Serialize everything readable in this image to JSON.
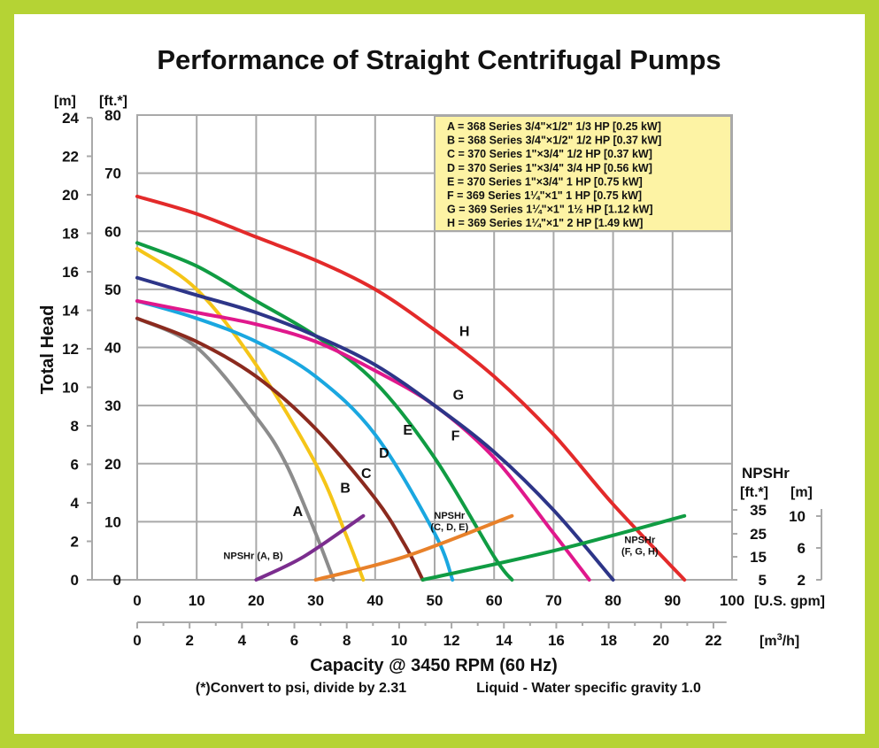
{
  "chart_data": {
    "type": "line",
    "title": "Performance of Straight Centrifugal Pumps",
    "xlabel": "Capacity @ 3450 RPM (60 Hz)",
    "ylabel": "Total Head",
    "x_unit_primary": "[U.S. gpm]",
    "x_unit_secondary": "[m3/h]",
    "y_unit_m": "[m]",
    "y_unit_ft": "[ft.*]",
    "xlim": [
      0,
      100
    ],
    "ylim": [
      0,
      80
    ],
    "grid": true,
    "x_ticks": [
      "0",
      "10",
      "20",
      "30",
      "40",
      "50",
      "60",
      "70",
      "80",
      "90",
      "100"
    ],
    "x2_ticks": [
      "0",
      "2",
      "4",
      "6",
      "8",
      "10",
      "12",
      "14",
      "16",
      "18",
      "20",
      "22"
    ],
    "y_ft_ticks": [
      "0",
      "10",
      "20",
      "30",
      "40",
      "50",
      "60",
      "70",
      "80"
    ],
    "y_m_ticks": [
      "0",
      "2",
      "4",
      "6",
      "8",
      "10",
      "12",
      "14",
      "16",
      "18",
      "20",
      "22",
      "24"
    ],
    "npsh_title": "NPSHr",
    "npsh_unit_ft": "[ft.*]",
    "npsh_unit_m": "[m]",
    "npsh_ft_ticks": [
      "5",
      "15",
      "25",
      "35"
    ],
    "npsh_m_ticks": [
      "2",
      "6",
      "10"
    ],
    "legend_position": "top-right",
    "legend": [
      "A = 368 Series 3/4\"×1/2\" 1/3 HP [0.25 kW]",
      "B = 368 Series 3/4\"×1/2\" 1/2 HP [0.37 kW]",
      "C = 370 Series 1\"×3/4\" 1/2 HP [0.37 kW]",
      "D = 370 Series 1\"×3/4\" 3/4 HP [0.56 kW]",
      "E = 370 Series 1\"×3/4\" 1 HP [0.75 kW]",
      "F = 369 Series 1¼\"×1\" 1 HP [0.75 kW]",
      "G = 369 Series 1¼\"×1\" 1½ HP [1.12 kW]",
      "H = 369 Series 1¼\"×1\" 2 HP [1.49 kW]"
    ],
    "series": [
      {
        "name": "A",
        "color": "#8c8c8c",
        "x": [
          0,
          10,
          20,
          25,
          30,
          33
        ],
        "y": [
          45,
          40,
          28,
          20,
          8,
          0
        ]
      },
      {
        "name": "B",
        "color": "#f5c518",
        "x": [
          0,
          10,
          20,
          30,
          35,
          38
        ],
        "y": [
          57,
          50,
          37,
          20,
          8,
          0
        ]
      },
      {
        "name": "C",
        "color": "#8b2a1e",
        "x": [
          0,
          10,
          20,
          30,
          40,
          45,
          48
        ],
        "y": [
          45,
          41,
          35,
          26,
          14,
          6,
          0
        ]
      },
      {
        "name": "D",
        "color": "#1aa7e0",
        "x": [
          0,
          10,
          20,
          30,
          40,
          50,
          53
        ],
        "y": [
          48,
          45,
          41,
          35,
          25,
          8,
          0
        ]
      },
      {
        "name": "E",
        "color": "#109c43",
        "x": [
          0,
          10,
          20,
          30,
          40,
          50,
          60,
          63
        ],
        "y": [
          58,
          54,
          48,
          42,
          34,
          21,
          4,
          0
        ]
      },
      {
        "name": "F",
        "color": "#e0188c",
        "x": [
          0,
          10,
          20,
          30,
          40,
          50,
          60,
          70,
          76
        ],
        "y": [
          48,
          46,
          44,
          41,
          36,
          30,
          21,
          8,
          0
        ]
      },
      {
        "name": "G",
        "color": "#2d3588",
        "x": [
          0,
          10,
          20,
          30,
          40,
          50,
          60,
          70,
          80
        ],
        "y": [
          52,
          49,
          46,
          42,
          37,
          30,
          22,
          12,
          0
        ]
      },
      {
        "name": "H",
        "color": "#e32a2a",
        "x": [
          0,
          10,
          20,
          30,
          40,
          50,
          60,
          70,
          80,
          92
        ],
        "y": [
          66,
          63,
          59,
          55,
          50,
          43,
          35,
          25,
          13,
          0
        ]
      }
    ],
    "curve_labels": [
      {
        "text": "A",
        "x": 27,
        "y": 11
      },
      {
        "text": "B",
        "x": 35,
        "y": 15
      },
      {
        "text": "C",
        "x": 38.5,
        "y": 17.5
      },
      {
        "text": "D",
        "x": 41.5,
        "y": 21
      },
      {
        "text": "E",
        "x": 45.5,
        "y": 25
      },
      {
        "text": "F",
        "x": 53.5,
        "y": 24
      },
      {
        "text": "G",
        "x": 54,
        "y": 31
      },
      {
        "text": "H",
        "x": 55,
        "y": 42
      }
    ],
    "npsh_series": [
      {
        "name": "NPSHr (A, B)",
        "color": "#7b2d8e",
        "x": [
          20,
          28,
          38
        ],
        "y": [
          0,
          4,
          11
        ]
      },
      {
        "name": "NPSHr (C, D, E)",
        "color": "#e8812a",
        "x": [
          30,
          45,
          63
        ],
        "y": [
          0,
          4,
          11
        ]
      },
      {
        "name": "NPSHr (F, G, H)",
        "color": "#109c43",
        "x": [
          48,
          70,
          92
        ],
        "y": [
          0,
          5,
          11
        ]
      }
    ],
    "npsh_labels": [
      {
        "lines": [
          "NPSHr (A, B)"
        ],
        "x": 19.5,
        "y": 3.6
      },
      {
        "lines": [
          "NPSHr",
          "(C, D, E)"
        ],
        "x": 52.5,
        "y": 10.5
      },
      {
        "lines": [
          "NPSHr",
          "(F, G, H)"
        ],
        "x": 84.5,
        "y": 6.3
      }
    ]
  },
  "footer": {
    "note": "(*)Convert to psi, divide by 2.31",
    "liquid": "Liquid - Water specific gravity 1.0"
  }
}
